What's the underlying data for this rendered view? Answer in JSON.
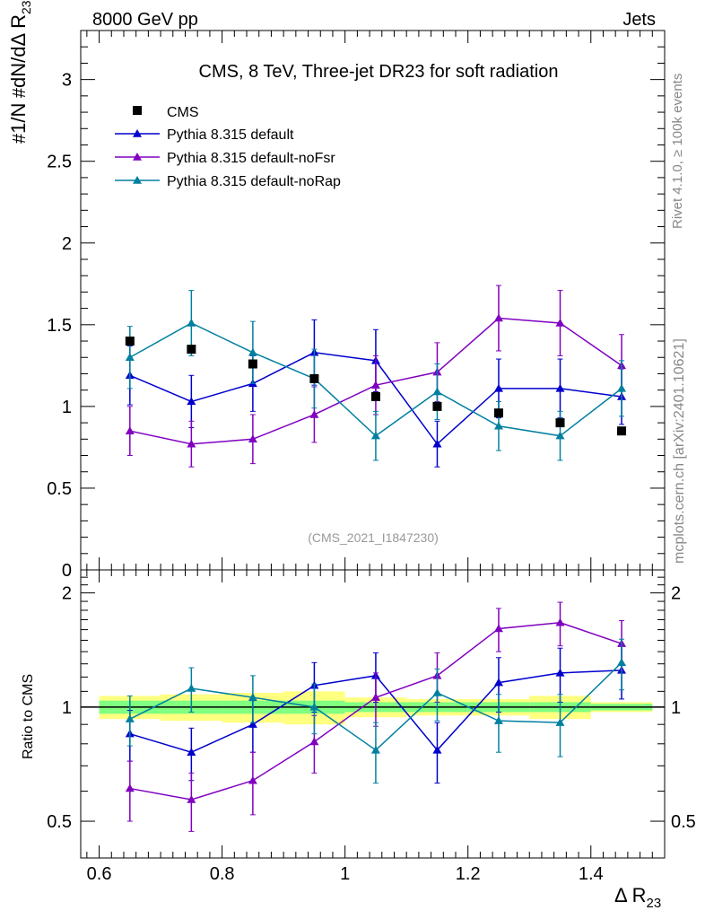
{
  "header": {
    "left": "8000 GeV pp",
    "right": "Jets"
  },
  "side_text": {
    "rivet": "Rivet 4.1.0, ≥ 100k events",
    "mcplots": "mcplots.cern.ch [arXiv:2401.10621]"
  },
  "chart_data": {
    "type": "line",
    "title": "CMS, 8 TeV, Three-jet DR23 for soft radiation",
    "analysis_tag": "(CMS_2021_I1847230)",
    "xlabel": "Δ R",
    "xlabel_sub": "23",
    "ylabel": "1/N dN/dΔ R23",
    "ratio_ylabel": "Ratio to CMS",
    "xlim": [
      0.57,
      1.52
    ],
    "ylim": [
      0,
      3.3
    ],
    "ratio_ylim": [
      0.4,
      2.3
    ],
    "x_ticks": [
      "0.6",
      "0.8",
      "1",
      "1.2",
      "1.4"
    ],
    "y_ticks": [
      "0",
      "0.5",
      "1",
      "1.5",
      "2",
      "2.5",
      "3"
    ],
    "ratio_y_ticks": [
      "0.5",
      "1",
      "2"
    ],
    "x": [
      0.65,
      0.75,
      0.85,
      0.95,
      1.05,
      1.15,
      1.25,
      1.35,
      1.45
    ],
    "data": {
      "name": "CMS",
      "values": [
        1.4,
        1.35,
        1.26,
        1.17,
        1.06,
        1.0,
        0.96,
        0.9,
        0.85
      ],
      "ratio_band_inner": [
        0.04,
        0.04,
        0.04,
        0.04,
        0.03,
        0.03,
        0.03,
        0.03,
        0.02
      ],
      "ratio_band_outer": [
        0.07,
        0.08,
        0.09,
        0.1,
        0.06,
        0.05,
        0.05,
        0.07,
        0.03
      ]
    },
    "series": [
      {
        "name": "Pythia 8.315 default",
        "color": "#0000cc",
        "values": [
          1.19,
          1.03,
          1.14,
          1.33,
          1.28,
          0.77,
          1.11,
          1.11,
          1.06
        ],
        "errors": [
          0.18,
          0.16,
          0.17,
          0.2,
          0.19,
          0.14,
          0.18,
          0.18,
          0.17
        ],
        "ratio": [
          0.85,
          0.76,
          0.9,
          1.14,
          1.21,
          0.77,
          1.16,
          1.23,
          1.25
        ],
        "ratio_err": [
          0.13,
          0.12,
          0.14,
          0.17,
          0.18,
          0.14,
          0.19,
          0.2,
          0.2
        ]
      },
      {
        "name": "Pythia 8.315 default-noFsr",
        "color": "#8000c0",
        "values": [
          0.85,
          0.77,
          0.8,
          0.95,
          1.13,
          1.21,
          1.54,
          1.51,
          1.25
        ],
        "errors": [
          0.15,
          0.14,
          0.15,
          0.17,
          0.18,
          0.18,
          0.2,
          0.2,
          0.19
        ],
        "ratio": [
          0.61,
          0.57,
          0.64,
          0.81,
          1.06,
          1.21,
          1.61,
          1.67,
          1.47
        ],
        "ratio_err": [
          0.11,
          0.1,
          0.12,
          0.14,
          0.17,
          0.18,
          0.21,
          0.22,
          0.22
        ]
      },
      {
        "name": "Pythia 8.315 default-noRap",
        "color": "#0080a0",
        "values": [
          1.3,
          1.51,
          1.33,
          1.17,
          0.82,
          1.09,
          0.88,
          0.82,
          1.11
        ],
        "errors": [
          0.19,
          0.2,
          0.19,
          0.18,
          0.15,
          0.17,
          0.15,
          0.15,
          0.17
        ],
        "ratio": [
          0.93,
          1.12,
          1.06,
          1.0,
          0.77,
          1.09,
          0.92,
          0.91,
          1.31
        ],
        "ratio_err": [
          0.14,
          0.15,
          0.15,
          0.15,
          0.14,
          0.17,
          0.16,
          0.17,
          0.2
        ]
      }
    ]
  }
}
